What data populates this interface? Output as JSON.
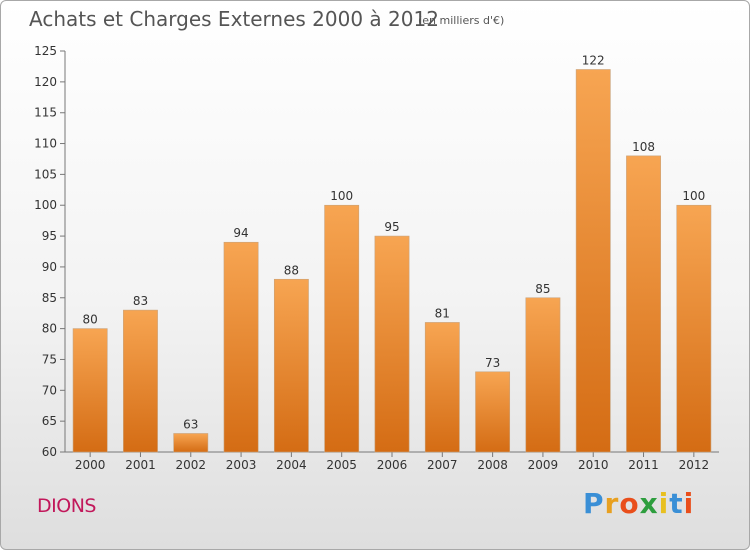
{
  "chart_data": {
    "type": "bar",
    "title": "Achats et Charges Externes 2000 à 2012",
    "subtitle": "(en milliers d'€)",
    "xlabel": "",
    "ylabel": "",
    "categories": [
      "2000",
      "2001",
      "2002",
      "2003",
      "2004",
      "2005",
      "2006",
      "2007",
      "2008",
      "2009",
      "2010",
      "2011",
      "2012"
    ],
    "values": [
      80,
      83,
      63,
      94,
      88,
      100,
      95,
      81,
      73,
      85,
      122,
      108,
      100
    ],
    "ylim": [
      60,
      125
    ],
    "yticks": [
      60,
      65,
      70,
      75,
      80,
      85,
      90,
      95,
      100,
      105,
      110,
      115,
      120,
      125
    ],
    "grid": false,
    "legend": "none",
    "bar_color": "#f08c2e"
  },
  "place_name": "DIONS",
  "logo": {
    "letters": [
      "P",
      "r",
      "o",
      "x",
      "i",
      "t",
      "i"
    ],
    "colors": [
      "#3a8fd6",
      "#e8a020",
      "#e94e1b",
      "#2e9e3e",
      "#e8c020",
      "#3a8fd6",
      "#e94e1b"
    ]
  }
}
